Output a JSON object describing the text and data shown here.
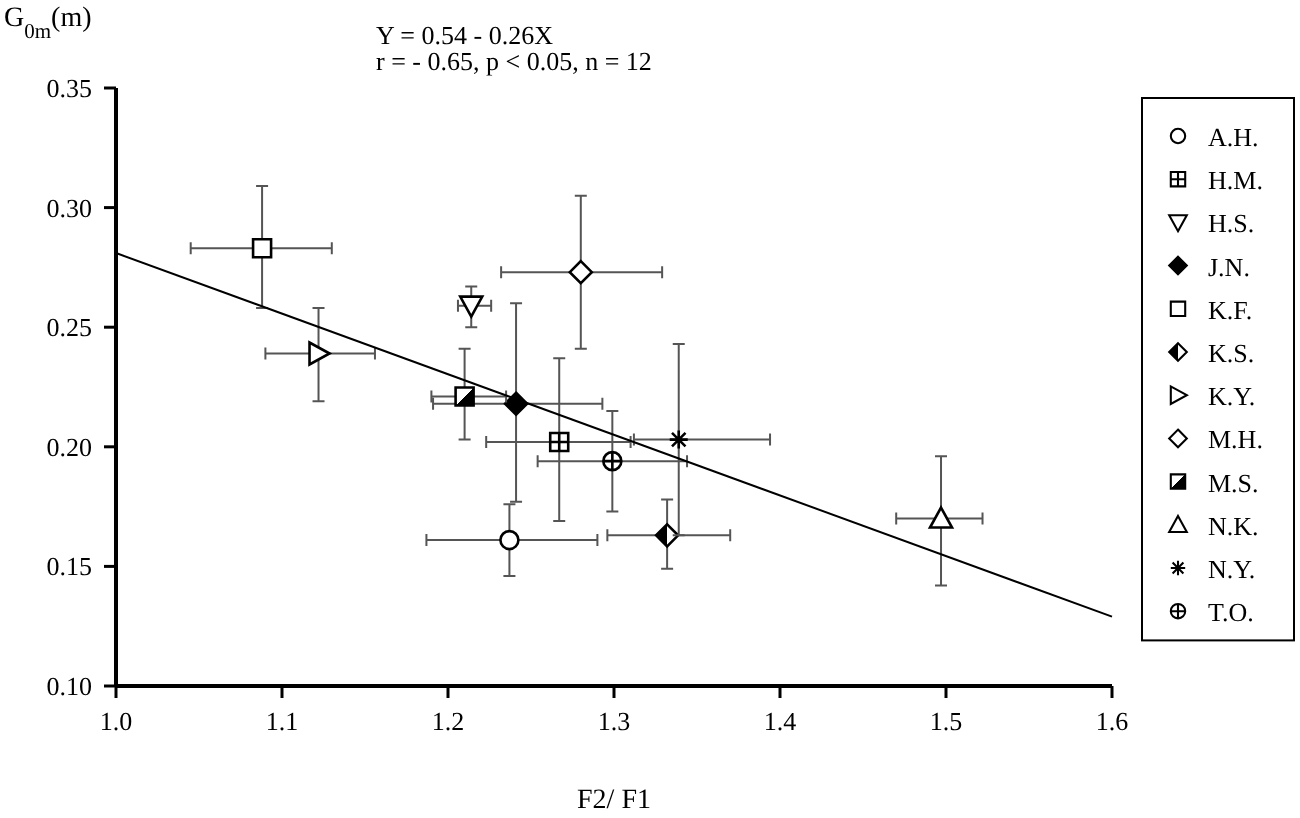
{
  "chart_data": {
    "type": "scatter",
    "xlabel": "F2/ F1",
    "ylabel": "G$_{0m}$(m)",
    "annotations": [
      "Y =  0.54 - 0.26X",
      "r = - 0.65, p < 0.05, n = 12"
    ],
    "xlim": [
      1.0,
      1.6
    ],
    "ylim": [
      0.1,
      0.35
    ],
    "xticks": [
      {
        "value": 1.0,
        "label": "1.0"
      },
      {
        "value": 1.1,
        "label": "1.1"
      },
      {
        "value": 1.2,
        "label": "1.2"
      },
      {
        "value": 1.3,
        "label": "1.3"
      },
      {
        "value": 1.4,
        "label": "1.4"
      },
      {
        "value": 1.5,
        "label": "1.5"
      },
      {
        "value": 1.6,
        "label": "1.6"
      }
    ],
    "yticks": [
      {
        "value": 0.1,
        "label": "0.10"
      },
      {
        "value": 0.15,
        "label": "0.15"
      },
      {
        "value": 0.2,
        "label": "0.20"
      },
      {
        "value": 0.25,
        "label": "0.25"
      },
      {
        "value": 0.3,
        "label": "0.30"
      },
      {
        "value": 0.35,
        "label": "0.35"
      }
    ],
    "grid": false,
    "legend": "right",
    "series": [
      {
        "name": "A.H.",
        "color": "#000000",
        "marker": "circle",
        "x": [
          1.237
        ],
        "values": [
          0.161
        ],
        "errors": [
          [
            0.146,
            0.176
          ]
        ],
        "xerrors": [
          [
            1.187,
            1.29
          ]
        ]
      },
      {
        "name": "H.M.",
        "color": "#000000",
        "marker": "square-cross",
        "x": [
          1.267
        ],
        "values": [
          0.202
        ],
        "errors": [
          [
            0.169,
            0.237
          ]
        ],
        "xerrors": [
          [
            1.223,
            1.31
          ]
        ]
      },
      {
        "name": "H.S.",
        "color": "#000000",
        "marker": "triangle-down",
        "x": [
          1.214
        ],
        "values": [
          0.259
        ],
        "errors": [
          [
            0.25,
            0.267
          ]
        ],
        "xerrors": [
          [
            1.206,
            1.226
          ]
        ]
      },
      {
        "name": "J.N.",
        "color": "#000000",
        "marker": "diamond-filled",
        "x": [
          1.241
        ],
        "values": [
          0.218
        ],
        "errors": [
          [
            0.177,
            0.26
          ]
        ],
        "xerrors": [
          [
            1.191,
            1.293
          ]
        ]
      },
      {
        "name": "K.F.",
        "color": "#000000",
        "marker": "square",
        "x": [
          1.088
        ],
        "values": [
          0.283
        ],
        "errors": [
          [
            0.258,
            0.309
          ]
        ],
        "xerrors": [
          [
            1.045,
            1.13
          ]
        ]
      },
      {
        "name": "K.S.",
        "color": "#000000",
        "marker": "diamond-half",
        "x": [
          1.332
        ],
        "values": [
          0.163
        ],
        "errors": [
          [
            0.149,
            0.178
          ]
        ],
        "xerrors": [
          [
            1.296,
            1.37
          ]
        ]
      },
      {
        "name": "K.Y.",
        "color": "#000000",
        "marker": "triangle-right",
        "x": [
          1.122
        ],
        "values": [
          0.239
        ],
        "errors": [
          [
            0.219,
            0.258
          ]
        ],
        "xerrors": [
          [
            1.09,
            1.156
          ]
        ]
      },
      {
        "name": "M.H.",
        "color": "#000000",
        "marker": "diamond",
        "x": [
          1.28
        ],
        "values": [
          0.273
        ],
        "errors": [
          [
            0.241,
            0.305
          ]
        ],
        "xerrors": [
          [
            1.232,
            1.329
          ]
        ]
      },
      {
        "name": "M.S.",
        "color": "#000000",
        "marker": "square-half",
        "x": [
          1.21
        ],
        "values": [
          0.221
        ],
        "errors": [
          [
            0.203,
            0.241
          ]
        ],
        "xerrors": [
          [
            1.19,
            1.235
          ]
        ]
      },
      {
        "name": "N.K.",
        "color": "#000000",
        "marker": "triangle",
        "x": [
          1.497
        ],
        "values": [
          0.17
        ],
        "errors": [
          [
            0.142,
            0.196
          ]
        ],
        "xerrors": [
          [
            1.47,
            1.522
          ]
        ]
      },
      {
        "name": "N.Y.",
        "color": "#000000",
        "marker": "cross",
        "x": [
          1.339
        ],
        "values": [
          0.203
        ],
        "errors": [
          [
            0.163,
            0.243
          ]
        ],
        "xerrors": [
          [
            1.312,
            1.394
          ]
        ]
      },
      {
        "name": "T.O.",
        "color": "#000000",
        "marker": "circle-plus",
        "x": [
          1.299
        ],
        "values": [
          0.194
        ],
        "errors": [
          [
            0.173,
            0.215
          ]
        ],
        "xerrors": [
          [
            1.254,
            1.344
          ]
        ]
      },
      {
        "type": "line",
        "color": "#000000",
        "x": [
          1.0,
          1.6
        ],
        "values": [
          0.281,
          0.129
        ]
      }
    ]
  }
}
